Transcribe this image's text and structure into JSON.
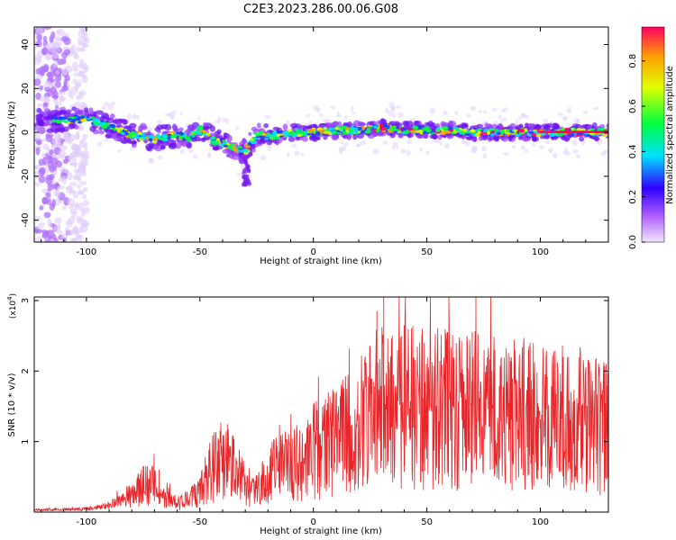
{
  "figure_title": "C2E3.2023.286.00.06.G08",
  "colors": {
    "snr_line": "#e8262a",
    "spectrogram_low": "#e8d8f8",
    "spectrogram_high": "#e8262a"
  },
  "chart_data": [
    {
      "id": "spectrogram",
      "type": "heatmap",
      "title": "C2E3.2023.286.00.06.G08",
      "xlabel": "Height of straight line (km)",
      "ylabel": "Frequency (Hz)",
      "xlim": [
        -123,
        130
      ],
      "ylim": [
        -50,
        48
      ],
      "x_ticks": [
        -100,
        -50,
        0,
        50,
        100
      ],
      "y_ticks": [
        -40,
        -20,
        0,
        20,
        40
      ],
      "x_tick_labels": [
        "-100",
        "-50",
        "0",
        "50",
        "100"
      ],
      "y_tick_labels": [
        "-40",
        "-20",
        "0",
        "20",
        "40"
      ],
      "colorbar": {
        "label": "Normalized spectral amplitude",
        "range": [
          0.0,
          0.95
        ],
        "ticks": [
          0.0,
          0.2,
          0.4,
          0.6,
          0.8
        ],
        "tick_labels": [
          "0.0",
          "0.2",
          "0.4",
          "0.6",
          "0.8"
        ],
        "colormap": [
          "#f2e6ff",
          "#a000ff",
          "#3000ff",
          "#00e0ff",
          "#00ff40",
          "#e0ff00",
          "#ffa000",
          "#ff0060"
        ]
      },
      "ridge": {
        "x": [
          -123,
          -110,
          -100,
          -90,
          -80,
          -70,
          -60,
          -55,
          -50,
          -45,
          -40,
          -35,
          -30,
          -25,
          -20,
          -10,
          0,
          10,
          20,
          30,
          40,
          50,
          60,
          70,
          80,
          90,
          100,
          110,
          120,
          130
        ],
        "y": [
          5,
          6,
          6,
          3,
          -1,
          -3,
          -1,
          -3,
          1,
          -3,
          -5,
          -7,
          -9,
          -1,
          -2,
          0,
          0,
          1,
          1,
          2,
          1,
          1,
          1,
          0,
          0,
          0,
          0,
          0,
          0,
          0
        ]
      }
    },
    {
      "id": "snr",
      "type": "line",
      "xlabel": "Height of straight line (km)",
      "ylabel": "SNR (10 * v/v)",
      "y_scale_label": "(x10",
      "y_scale_exp": "4",
      "y_scale_close": ")",
      "xlim": [
        -123,
        130
      ],
      "ylim": [
        0,
        3.05
      ],
      "x_ticks": [
        -100,
        -50,
        0,
        50,
        100
      ],
      "y_ticks": [
        1,
        2,
        3
      ],
      "x_tick_labels": [
        "-100",
        "-50",
        "0",
        "50",
        "100"
      ],
      "y_tick_labels": [
        "1",
        "2",
        "3"
      ],
      "envelope": {
        "x": [
          -123,
          -100,
          -90,
          -80,
          -75,
          -70,
          -65,
          -60,
          -50,
          -45,
          -40,
          -35,
          -30,
          -25,
          -20,
          -10,
          0,
          10,
          20,
          30,
          40,
          50,
          60,
          70,
          80,
          90,
          100,
          110,
          120,
          130
        ],
        "y": [
          0.03,
          0.05,
          0.1,
          0.3,
          0.5,
          0.45,
          0.3,
          0.15,
          0.35,
          0.8,
          1.0,
          0.8,
          0.5,
          0.4,
          0.7,
          0.9,
          1.1,
          1.3,
          1.6,
          1.85,
          1.9,
          1.9,
          1.85,
          1.85,
          1.8,
          1.8,
          1.75,
          1.7,
          1.6,
          1.55
        ]
      },
      "peaks": [
        {
          "x": -75,
          "y": 0.65
        },
        {
          "x": -68,
          "y": 0.6
        },
        {
          "x": -42,
          "y": 1.05
        },
        {
          "x": 28,
          "y": 2.85
        },
        {
          "x": 31,
          "y": 3.05
        },
        {
          "x": 40,
          "y": 2.65
        },
        {
          "x": 48,
          "y": 2.6
        },
        {
          "x": 59,
          "y": 2.55
        },
        {
          "x": 70,
          "y": 2.55
        },
        {
          "x": 80,
          "y": 2.3
        },
        {
          "x": 95,
          "y": 2.35
        },
        {
          "x": 110,
          "y": 2.2
        },
        {
          "x": 129,
          "y": 2.1
        }
      ]
    }
  ]
}
